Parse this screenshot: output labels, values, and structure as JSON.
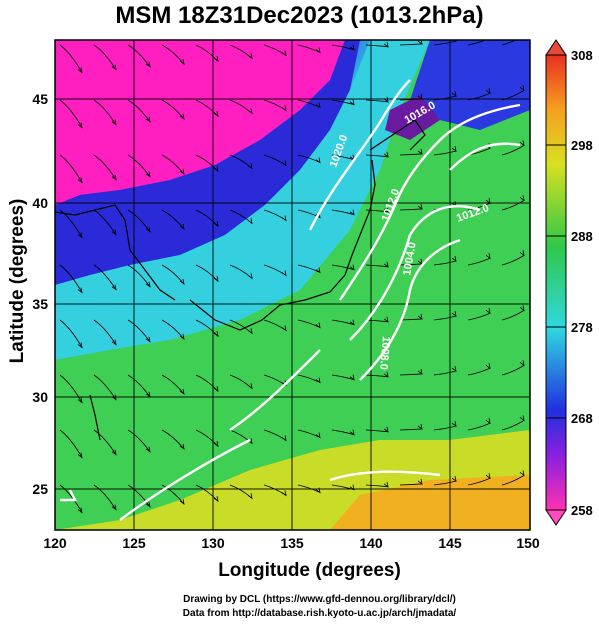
{
  "title": "MSM 18Z31Dec2023 (1013.2hPa)",
  "xlabel": "Longitude (degrees)",
  "ylabel": "Latitude  (degrees)",
  "credits": [
    "Drawing by DCL (https://www.gfd-dennou.org/library/dcl/)",
    "Data from http://database.rish.kyoto-u.ac.jp/arch/jmadata/"
  ],
  "x_ticks": [
    "120",
    "125",
    "130",
    "135",
    "140",
    "145",
    "150"
  ],
  "y_ticks": [
    "25",
    "30",
    "35",
    "40",
    "45"
  ],
  "colorbar_ticks": [
    "308",
    "298",
    "288",
    "278",
    "268",
    "258"
  ],
  "contour_labels": [
    "1020.0",
    "1016.0",
    "1012.0",
    "1008.0",
    "1004.0",
    "1012.0"
  ],
  "colors": {
    "magenta": "#ff1fc0",
    "blue": "#2233dd",
    "cyan": "#33d6e6",
    "green": "#33cc44",
    "yellow": "#e0e020",
    "orange": "#f5a623"
  }
}
